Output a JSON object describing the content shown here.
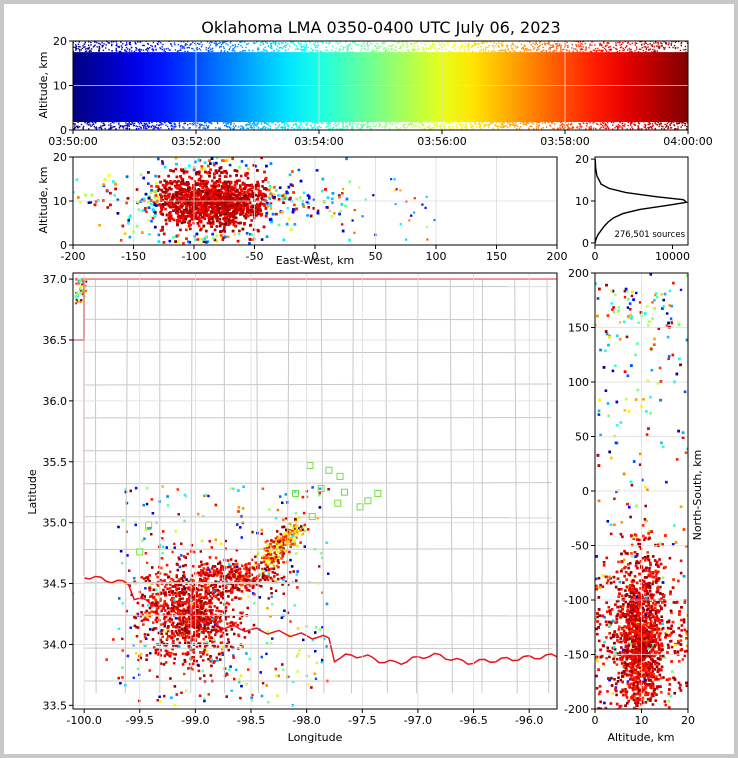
{
  "chart_data": {
    "type": "scatter",
    "title": "Oklahoma LMA 0350-0400 UTC July 06, 2023",
    "color_scale": "time (jet colormap, blue = earliest, dark red = latest)",
    "panels": [
      {
        "name": "altitude-vs-time",
        "ylabel": "Altitude, km",
        "xlabel": "",
        "x_ticks": [
          "03:50:00",
          "03:52:00",
          "03:54:00",
          "03:56:00",
          "03:58:00",
          "04:00:00"
        ],
        "y_ticks": [
          0,
          10,
          20
        ],
        "xlim": [
          "03:50:00",
          "04:00:00"
        ],
        "ylim": [
          0,
          20
        ],
        "grid": true
      },
      {
        "name": "altitude-vs-east-west",
        "xlabel": "East-West, km",
        "ylabel": "Altitude, km",
        "x_ticks": [
          -200,
          -150,
          -100,
          -50,
          0,
          50,
          100,
          150,
          200
        ],
        "y_ticks": [
          0,
          10,
          20
        ],
        "xlim": [
          -200,
          200
        ],
        "ylim": [
          0,
          20
        ],
        "grid": true
      },
      {
        "name": "altitude-histogram",
        "type": "line",
        "x_ticks": [
          0,
          10000
        ],
        "y_ticks": [
          0,
          10,
          20
        ],
        "xlim": [
          0,
          12000
        ],
        "ylim": [
          -0.5,
          20.5
        ],
        "annotation": "276,501 sources",
        "profile": [
          {
            "alt": 0.0,
            "count": 0
          },
          {
            "alt": 1.0,
            "count": 150
          },
          {
            "alt": 2.0,
            "count": 400
          },
          {
            "alt": 3.0,
            "count": 800
          },
          {
            "alt": 4.0,
            "count": 1200
          },
          {
            "alt": 5.0,
            "count": 1700
          },
          {
            "alt": 6.0,
            "count": 2400
          },
          {
            "alt": 7.0,
            "count": 3600
          },
          {
            "alt": 8.0,
            "count": 5800
          },
          {
            "alt": 9.0,
            "count": 9500
          },
          {
            "alt": 9.7,
            "count": 11800
          },
          {
            "alt": 10.3,
            "count": 11400
          },
          {
            "alt": 11.0,
            "count": 8000
          },
          {
            "alt": 12.0,
            "count": 4000
          },
          {
            "alt": 13.0,
            "count": 1800
          },
          {
            "alt": 14.0,
            "count": 800
          },
          {
            "alt": 16.0,
            "count": 250
          },
          {
            "alt": 18.0,
            "count": 80
          },
          {
            "alt": 20.0,
            "count": 20
          }
        ]
      },
      {
        "name": "plan-view-map",
        "xlabel": "Longitude",
        "ylabel": "Latitude",
        "x_ticks": [
          -100.0,
          -99.5,
          -99.0,
          -98.5,
          -98.0,
          -97.5,
          -97.0,
          -96.5,
          -96.0
        ],
        "y_ticks": [
          33.5,
          34.0,
          34.5,
          35.0,
          35.5,
          36.0,
          36.5,
          37.0
        ],
        "xlim": [
          -100.1,
          -95.75
        ],
        "ylim": [
          33.47,
          37.05
        ],
        "grid": true
      },
      {
        "name": "north-south-vs-altitude",
        "xlabel": "Altitude, km",
        "ylabel": "North-South, km",
        "x_ticks": [
          0,
          10,
          20
        ],
        "y_ticks": [
          -200,
          -150,
          -100,
          -50,
          0,
          50,
          100,
          150,
          200
        ],
        "xlim": [
          0,
          20
        ],
        "ylim": [
          -200,
          200
        ],
        "grid": true
      }
    ],
    "stations": [
      {
        "lon": -97.97,
        "lat": 35.47
      },
      {
        "lon": -97.8,
        "lat": 35.43
      },
      {
        "lon": -97.7,
        "lat": 35.38
      },
      {
        "lon": -97.87,
        "lat": 35.28
      },
      {
        "lon": -97.66,
        "lat": 35.25
      },
      {
        "lon": -98.1,
        "lat": 35.24
      },
      {
        "lon": -97.36,
        "lat": 35.24
      },
      {
        "lon": -97.45,
        "lat": 35.18
      },
      {
        "lon": -97.72,
        "lat": 35.16
      },
      {
        "lon": -97.52,
        "lat": 35.13
      },
      {
        "lon": -97.95,
        "lat": 35.05
      },
      {
        "lon": -99.42,
        "lat": 34.98
      },
      {
        "lon": -99.5,
        "lat": 34.76
      }
    ],
    "storm_extent": {
      "lon": [
        -99.6,
        -98.15
      ],
      "lat": [
        33.5,
        35.0
      ],
      "east_west_km": [
        -200,
        -40
      ],
      "north_south_km": [
        -200,
        -60
      ]
    }
  }
}
